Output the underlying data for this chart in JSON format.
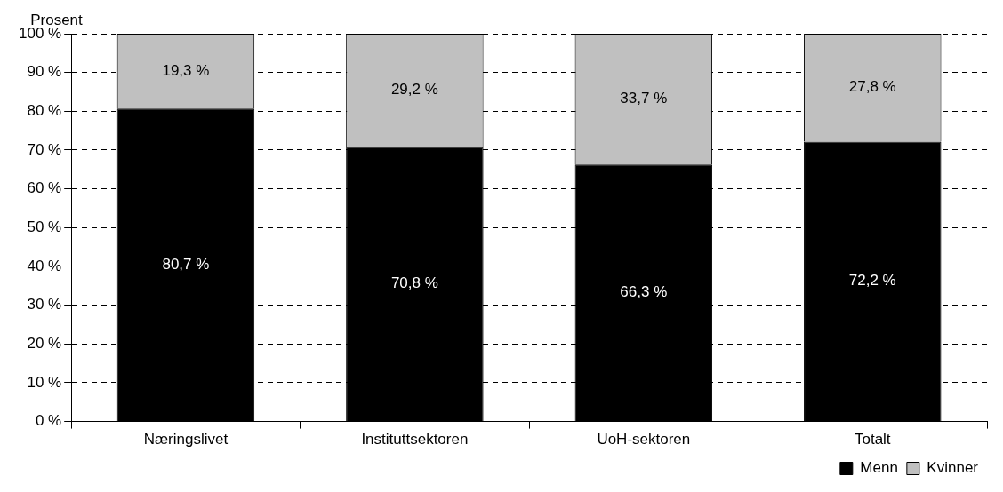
{
  "chart_data": {
    "type": "bar",
    "stacked": true,
    "ylabel": "Prosent",
    "categories": [
      "Næringslivet",
      "Instituttsektoren",
      "UoH-sektoren",
      "Totalt"
    ],
    "series": [
      {
        "name": "Menn",
        "color": "#000000",
        "values": [
          80.7,
          70.8,
          66.3,
          72.2
        ],
        "value_labels": [
          "80,7 %",
          "70,8 %",
          "66,3 %",
          "72,2 %"
        ]
      },
      {
        "name": "Kvinner",
        "color": "#c0c0c0",
        "values": [
          19.3,
          29.2,
          33.7,
          27.8
        ],
        "value_labels": [
          "19,3 %",
          "29,2 %",
          "33,7 %",
          "27,8 %"
        ]
      }
    ],
    "ylim": [
      0,
      100
    ],
    "yticks": [
      {
        "value": 0,
        "label": "0 %"
      },
      {
        "value": 10,
        "label": "10 %"
      },
      {
        "value": 20,
        "label": "20 %"
      },
      {
        "value": 30,
        "label": "30 %"
      },
      {
        "value": 40,
        "label": "40 %"
      },
      {
        "value": 50,
        "label": "50 %"
      },
      {
        "value": 60,
        "label": "60 %"
      },
      {
        "value": 70,
        "label": "70 %"
      },
      {
        "value": 80,
        "label": "80 %"
      },
      {
        "value": 90,
        "label": "90 %"
      },
      {
        "value": 100,
        "label": "100 %"
      }
    ],
    "grid": "y",
    "line_style": "dashed",
    "legend": "bottom right"
  }
}
